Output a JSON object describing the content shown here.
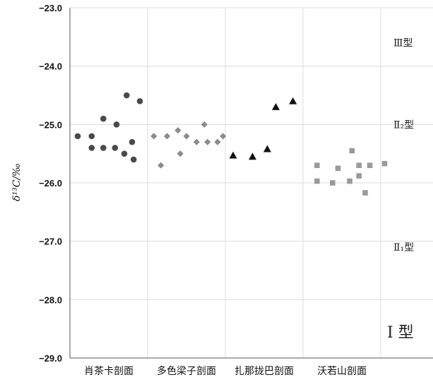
{
  "chart_data": {
    "type": "scatter",
    "title": "",
    "xlabel": "",
    "ylabel": "δ¹³C/‰",
    "ylim": [
      -29.0,
      -23.0
    ],
    "y_ticks": [
      "-23.0",
      "-24.0",
      "-25.0",
      "-26.0",
      "-27.0",
      "-28.0",
      "-29.0"
    ],
    "grid": true,
    "categories": [
      "肖茶卡剖面",
      "多色梁子剖面",
      "扎那拢巴剖面",
      "沃若山剖面"
    ],
    "series": [
      {
        "category": "肖茶卡剖面",
        "marker": "circle",
        "color": "#4a4a4a",
        "points": [
          {
            "x": 0.1,
            "y": -25.2
          },
          {
            "x": 0.28,
            "y": -25.4
          },
          {
            "x": 0.28,
            "y": -25.2
          },
          {
            "x": 0.43,
            "y": -24.9
          },
          {
            "x": 0.43,
            "y": -25.4
          },
          {
            "x": 0.58,
            "y": -25.4
          },
          {
            "x": 0.6,
            "y": -25.0
          },
          {
            "x": 0.7,
            "y": -25.5
          },
          {
            "x": 0.73,
            "y": -24.5
          },
          {
            "x": 0.8,
            "y": -25.3
          },
          {
            "x": 0.82,
            "y": -25.6
          },
          {
            "x": 0.9,
            "y": -24.6
          }
        ]
      },
      {
        "category": "多色梁子剖面",
        "marker": "diamond",
        "color": "#8c8c8c",
        "points": [
          {
            "x": 0.08,
            "y": -25.2
          },
          {
            "x": 0.17,
            "y": -25.7
          },
          {
            "x": 0.25,
            "y": -25.2
          },
          {
            "x": 0.39,
            "y": -25.1
          },
          {
            "x": 0.42,
            "y": -25.5
          },
          {
            "x": 0.5,
            "y": -25.2
          },
          {
            "x": 0.63,
            "y": -25.3
          },
          {
            "x": 0.73,
            "y": -25.0
          },
          {
            "x": 0.77,
            "y": -25.3
          },
          {
            "x": 0.9,
            "y": -25.3
          },
          {
            "x": 0.97,
            "y": -25.2
          }
        ]
      },
      {
        "category": "扎那拢巴剖面",
        "marker": "triangle",
        "color": "#111111",
        "points": [
          {
            "x": 0.1,
            "y": -25.53
          },
          {
            "x": 0.35,
            "y": -25.55
          },
          {
            "x": 0.54,
            "y": -25.42
          },
          {
            "x": 0.65,
            "y": -24.7
          },
          {
            "x": 0.87,
            "y": -24.6
          }
        ]
      },
      {
        "category": "沃若山剖面",
        "marker": "square",
        "color": "#9a9a9a",
        "points": [
          {
            "x": 0.18,
            "y": -25.7
          },
          {
            "x": 0.18,
            "y": -25.97
          },
          {
            "x": 0.38,
            "y": -26.0
          },
          {
            "x": 0.45,
            "y": -25.75
          },
          {
            "x": 0.6,
            "y": -25.97
          },
          {
            "x": 0.63,
            "y": -25.45
          },
          {
            "x": 0.72,
            "y": -25.7
          },
          {
            "x": 0.72,
            "y": -25.88
          },
          {
            "x": 0.8,
            "y": -26.17
          },
          {
            "x": 0.86,
            "y": -25.7
          },
          {
            "x": 1.05,
            "y": -25.67
          }
        ]
      }
    ],
    "annotations": [
      {
        "label": "Ⅲ型",
        "y": -23.6
      },
      {
        "label": "Ⅱ₂型",
        "y": -25.0
      },
      {
        "label": "Ⅱ₁型",
        "y": -27.1
      },
      {
        "label": "Ⅰ 型",
        "y": -28.55
      }
    ]
  }
}
